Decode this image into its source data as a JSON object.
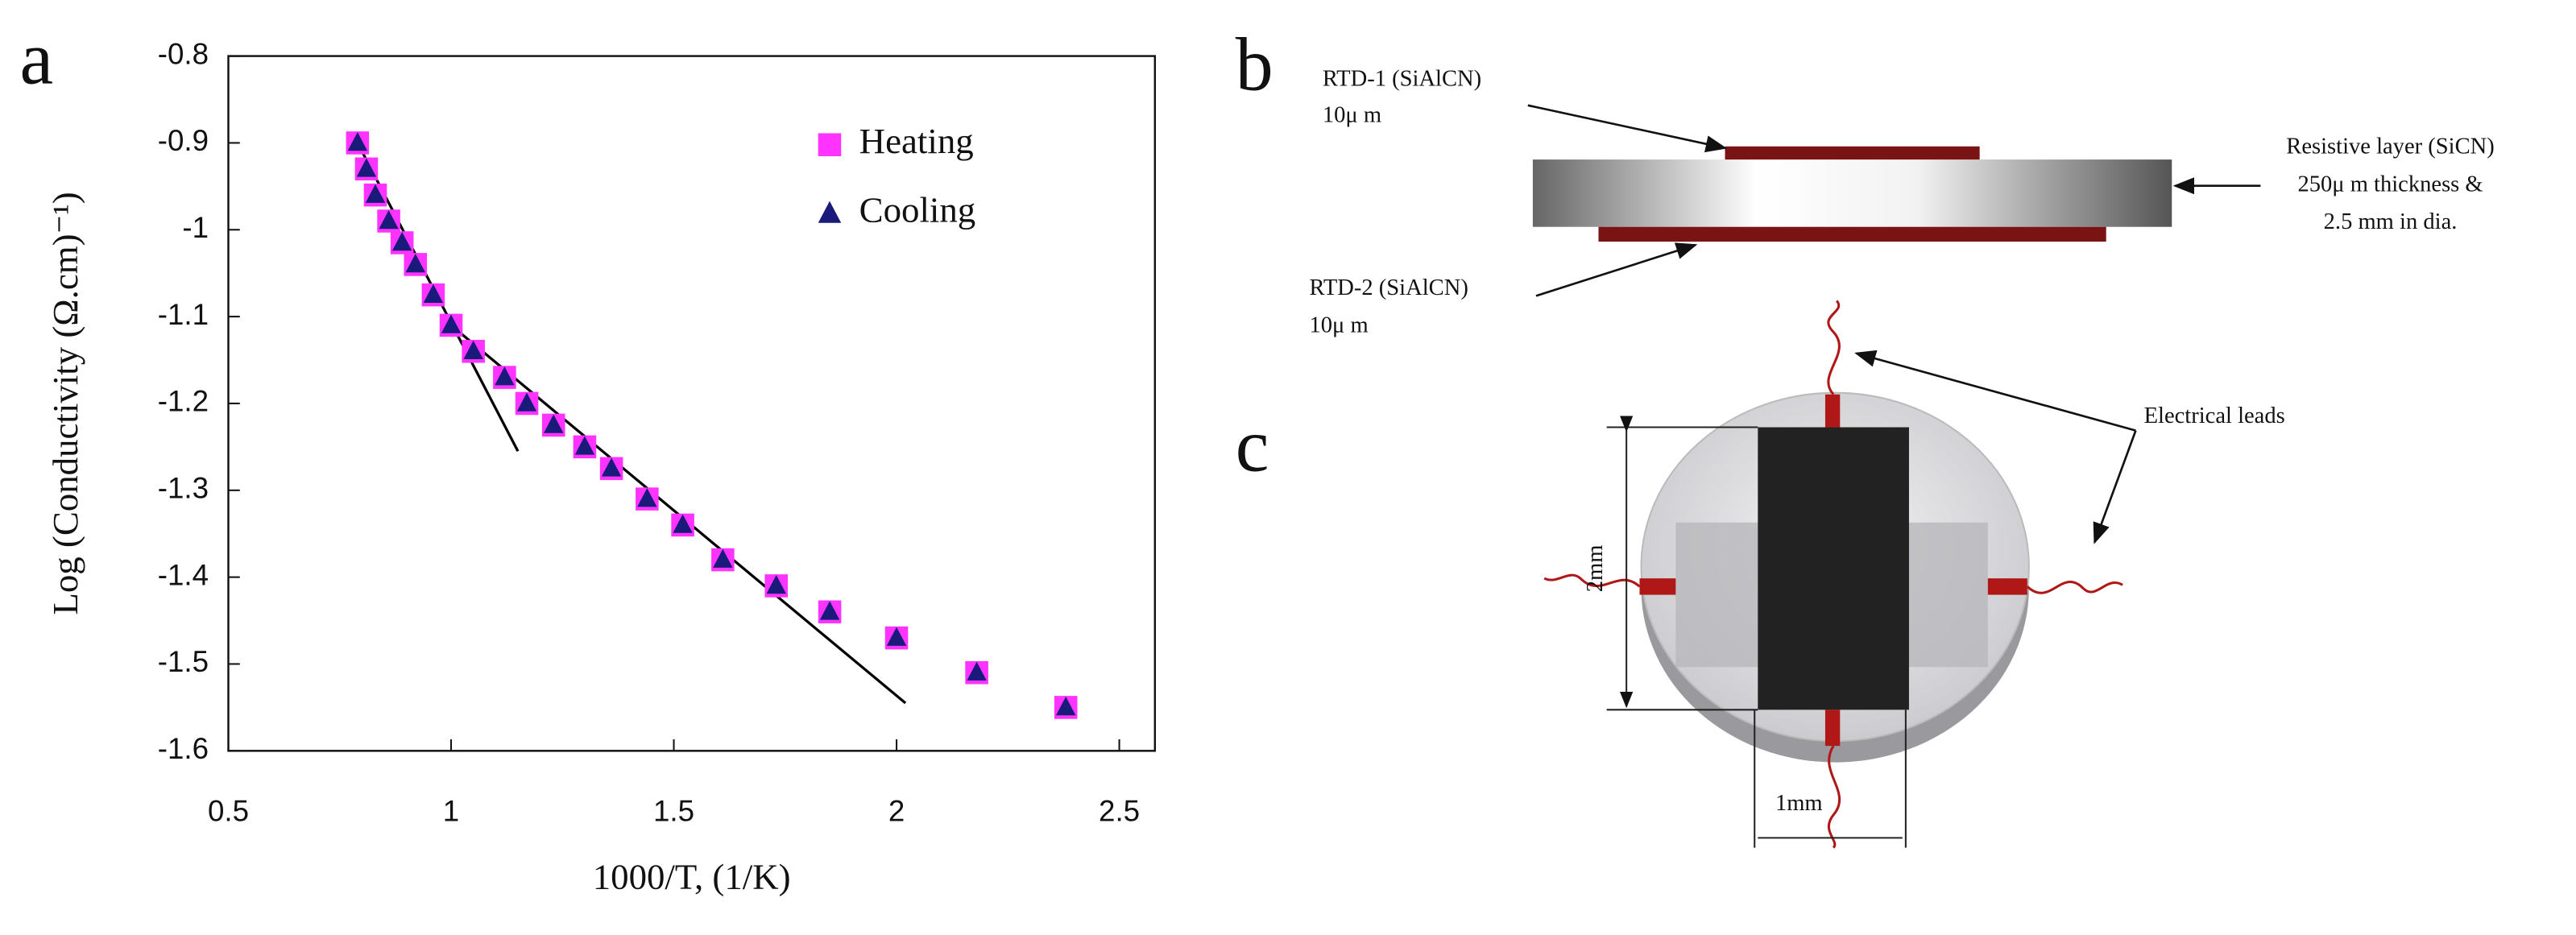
{
  "chart_data": {
    "type": "scatter",
    "xlabel": "1000/T, (1/K)",
    "ylabel": "Log (Conductivity (Ω.cm)⁻¹)",
    "xlim": [
      0.5,
      2.58
    ],
    "xticks": [
      0.5,
      1,
      1.5,
      2,
      2.5
    ],
    "ylim": [
      -1.6,
      -0.8
    ],
    "yticks": [
      -0.8,
      -0.9,
      -1,
      -1.1,
      -1.2,
      -1.3,
      -1.4,
      -1.5,
      -1.6
    ],
    "legend": "upper right",
    "series": [
      {
        "name": "Heating",
        "color": "#ff33ff",
        "marker": "square",
        "x": [
          0.79,
          0.81,
          0.83,
          0.86,
          0.89,
          0.92,
          0.96,
          1.0,
          1.05,
          1.12,
          1.17,
          1.23,
          1.3,
          1.36,
          1.44,
          1.52,
          1.61,
          1.73,
          1.85,
          2.0,
          2.18,
          2.38
        ],
        "values": [
          -0.9,
          -0.93,
          -0.96,
          -0.99,
          -1.015,
          -1.04,
          -1.075,
          -1.11,
          -1.14,
          -1.17,
          -1.2,
          -1.225,
          -1.25,
          -1.275,
          -1.31,
          -1.34,
          -1.38,
          -1.41,
          -1.44,
          -1.47,
          -1.51,
          -1.55
        ]
      },
      {
        "name": "Cooling",
        "color": "#1a1a7a",
        "marker": "triangle",
        "x": [
          0.79,
          0.81,
          0.83,
          0.86,
          0.89,
          0.92,
          0.96,
          1.0,
          1.05,
          1.12,
          1.17,
          1.23,
          1.3,
          1.36,
          1.44,
          1.52,
          1.61,
          1.73,
          1.85,
          2.0,
          2.18,
          2.38
        ],
        "values": [
          -0.9,
          -0.93,
          -0.96,
          -0.99,
          -1.015,
          -1.04,
          -1.075,
          -1.11,
          -1.14,
          -1.17,
          -1.2,
          -1.225,
          -1.25,
          -1.275,
          -1.31,
          -1.34,
          -1.38,
          -1.41,
          -1.44,
          -1.47,
          -1.51,
          -1.55
        ]
      }
    ],
    "fit_lines": [
      {
        "color": "#000000",
        "x": [
          0.79,
          1.15
        ],
        "values": [
          -0.9,
          -1.255
        ]
      },
      {
        "color": "#000000",
        "x": [
          1.0,
          2.02
        ],
        "values": [
          -1.11,
          -1.545
        ]
      }
    ]
  },
  "panel_labels": [
    "a",
    "b",
    "c"
  ],
  "panel_b": {
    "rtd1": [
      "RTD-1 (SiAlCN)",
      "10μ m"
    ],
    "rtd2": [
      "RTD-2 (SiAlCN)",
      "10μ m"
    ],
    "resistive": [
      "Resistive layer (SiCN)",
      "250μ m thickness &",
      "2.5 mm in dia."
    ]
  },
  "panel_c": {
    "leads": "Electrical leads",
    "height": "2mm",
    "width": "1mm"
  }
}
